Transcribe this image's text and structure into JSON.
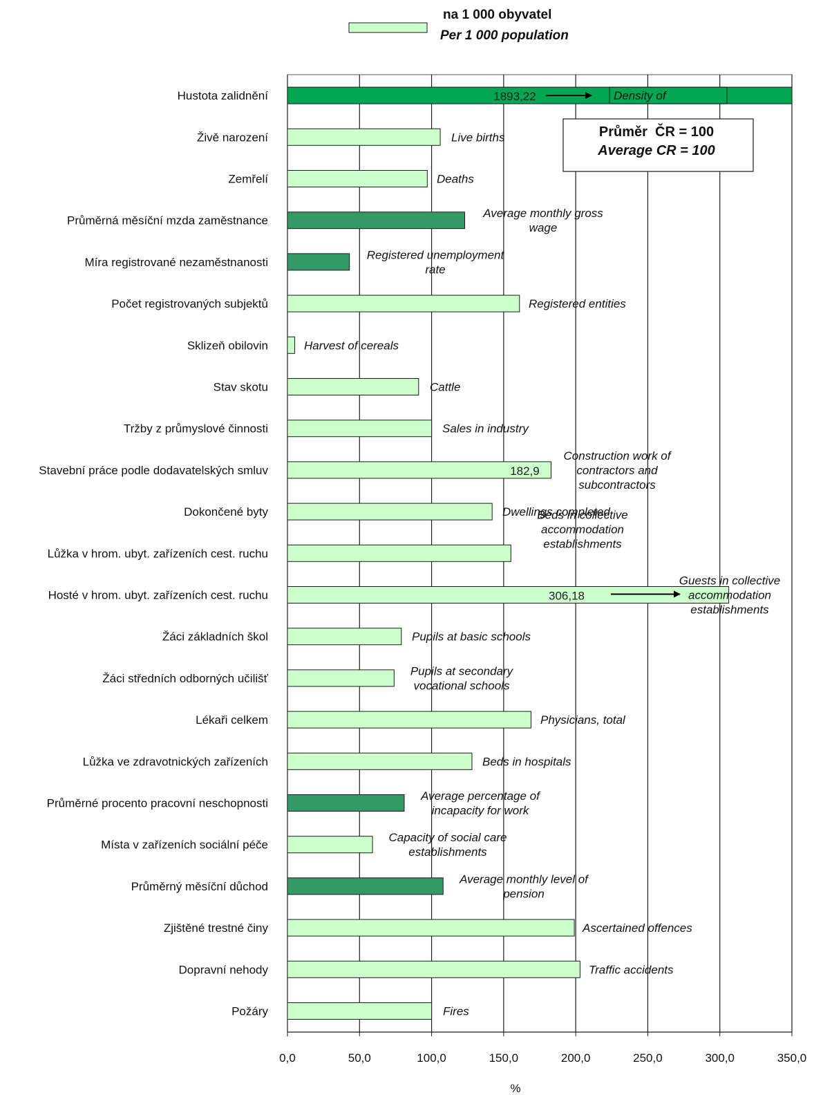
{
  "legend": {
    "label_cz": "na 1 000 obyvatel",
    "label_en": "Per 1 000 population"
  },
  "average_box": {
    "line_cz": "Průměr  ČR = 100",
    "line_en": "Average CR = 100"
  },
  "colors": {
    "per_population": "#ccffcc",
    "indicator": "#339966",
    "density": "#00a651",
    "border": "#1a1a1a"
  },
  "chart_data": {
    "type": "bar",
    "orientation": "horizontal",
    "xlabel": "%",
    "xlim": [
      0,
      350
    ],
    "xticks": [
      "0,0",
      "50,0",
      "100,0",
      "150,0",
      "200,0",
      "250,0",
      "300,0",
      "350,0"
    ],
    "grid": "vertical",
    "legend_position": "top",
    "categories": [
      {
        "label": "Hustota zalidnění",
        "en": "Density of",
        "value": 1893.22,
        "style": "density",
        "value_label": "1893,22"
      },
      {
        "label": "Živě narození",
        "en": "Live births",
        "value": 106,
        "style": "per_population"
      },
      {
        "label": "Zemřelí",
        "en": "Deaths",
        "value": 97,
        "style": "per_population"
      },
      {
        "label": "Průměrná měsíční mzda zaměstnance",
        "en": "Average monthly gross wage",
        "value": 123,
        "style": "indicator"
      },
      {
        "label": "Míra registrované nezaměstnanosti",
        "en": "Registered unemployment rate",
        "value": 43,
        "style": "indicator"
      },
      {
        "label": "Počet registrovaných subjektů",
        "en": "Registered entities",
        "value": 161,
        "style": "per_population"
      },
      {
        "label": "Sklizeň obilovin",
        "en": "Harvest of cereals",
        "value": 5,
        "style": "per_population"
      },
      {
        "label": "Stav skotu",
        "en": "Cattle",
        "value": 91,
        "style": "per_population"
      },
      {
        "label": "Tržby z průmyslové činnosti",
        "en": "Sales in industry",
        "value": 100,
        "style": "per_population"
      },
      {
        "label": "Stavební práce podle dodavatelských smluv",
        "en": "Construction work of contractors and subcontractors",
        "value": 182.9,
        "style": "per_population",
        "value_label": "182,9"
      },
      {
        "label": "Dokončené byty",
        "en": "Dwellings completed",
        "value": 142,
        "style": "per_population"
      },
      {
        "label": "Lůžka v hrom. ubyt. zařízeních cest. ruchu",
        "en": "Beds in collective accommodation establishments",
        "value": 155,
        "style": "per_population"
      },
      {
        "label": "Hosté v hrom. ubyt. zařízeních cest. ruchu",
        "en": "Guests in collective accommodation establishments",
        "value": 306.18,
        "style": "per_population",
        "value_label": "306,18"
      },
      {
        "label": "Žáci základních škol",
        "en": "Pupils at basic schools",
        "value": 79,
        "style": "per_population"
      },
      {
        "label": "Žáci středních odborných učilišť",
        "en": "Pupils at secondary vocational schools",
        "value": 74,
        "style": "per_population"
      },
      {
        "label": "Lékaři celkem",
        "en": "Physicians, total",
        "value": 169,
        "style": "per_population"
      },
      {
        "label": "Lůžka ve zdravotnických zařízeních",
        "en": "Beds in hospitals",
        "value": 128,
        "style": "per_population"
      },
      {
        "label": "Průměrné procento pracovní neschopnosti",
        "en": "Average percentage of incapacity for work",
        "value": 81,
        "style": "indicator"
      },
      {
        "label": "Místa v zařízeních sociální péče",
        "en": "Capacity of social care establishments",
        "value": 59,
        "style": "per_population"
      },
      {
        "label": "Průměrný měsíční důchod",
        "en": "Average monthly level of pension",
        "value": 108,
        "style": "indicator"
      },
      {
        "label": "Zjištěné trestné činy",
        "en": "Ascertained offences",
        "value": 199,
        "style": "per_population"
      },
      {
        "label": "Dopravní nehody",
        "en": "Traffic accidents",
        "value": 203,
        "style": "per_population"
      },
      {
        "label": "Požáry",
        "en": "Fires",
        "value": 100,
        "style": "per_population"
      }
    ]
  }
}
